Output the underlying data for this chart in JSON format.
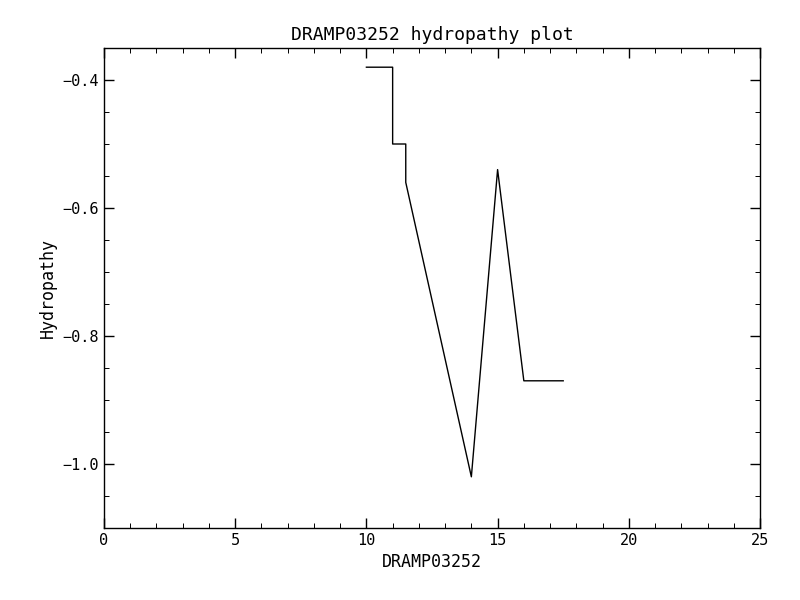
{
  "title": "DRAMP03252 hydropathy plot",
  "xlabel": "DRAMP03252",
  "ylabel": "Hydropathy",
  "xlim": [
    0,
    25
  ],
  "ylim": [
    -1.1,
    -0.35
  ],
  "xticks": [
    0,
    5,
    10,
    15,
    20,
    25
  ],
  "yticks": [
    -1.0,
    -0.8,
    -0.6,
    -0.4
  ],
  "x": [
    10.0,
    11.0,
    11.0,
    11.5,
    11.5,
    14.0,
    14.0,
    15.0,
    15.0,
    16.0,
    16.0,
    17.5
  ],
  "y": [
    -0.38,
    -0.38,
    -0.5,
    -0.5,
    -0.56,
    -1.02,
    -1.02,
    -0.54,
    -0.54,
    -0.87,
    -0.87,
    -0.87
  ],
  "line_color": "#000000",
  "line_width": 1.0,
  "bg_color": "#ffffff",
  "tick_font": "monospace",
  "title_font": "monospace",
  "label_font": "monospace",
  "title_fontsize": 13,
  "label_fontsize": 12,
  "tick_fontsize": 11
}
